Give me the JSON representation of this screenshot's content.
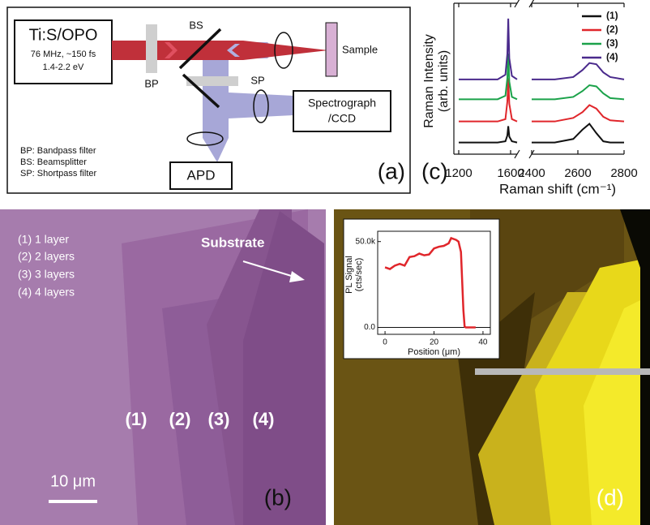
{
  "panel_a": {
    "label": "(a)",
    "laser": {
      "title": "Ti:S/OPO",
      "lines": [
        "76 MHz, ~150 fs",
        "1.4-2.2 eV"
      ]
    },
    "components": {
      "bp": "BP",
      "bs": "BS",
      "sp": "SP",
      "sample": "Sample",
      "spectrograph": [
        "Spectrograph",
        "/CCD"
      ],
      "apd": "APD"
    },
    "legend": [
      "BP: Bandpass filter",
      "BS: Beamsplitter",
      "SP: Shortpass filter"
    ]
  },
  "panel_b": {
    "label": "(b)",
    "legend": [
      "(1) 1 layer",
      "(2) 2 layers",
      "(3) 3 layers",
      "(4) 4 layers"
    ],
    "substrate": "Substrate",
    "regions": [
      "(1)",
      "(2)",
      "(3)",
      "(4)"
    ],
    "scale_bar": "10 μm"
  },
  "panel_c": {
    "label": "(c)",
    "chart": {
      "type": "line",
      "y_label": [
        "Raman Intensity",
        "(arb. units)"
      ],
      "x_label": "Raman shift (cm⁻¹)",
      "x": [
        1200,
        1400,
        1500,
        1560,
        1575,
        1582,
        1590,
        1610,
        1650,
        2400,
        2500,
        2580,
        2620,
        2650,
        2680,
        2710,
        2740,
        2800
      ],
      "xlim": [
        1200,
        2800
      ],
      "x_break": [
        1650,
        2400
      ],
      "xticks": [
        1200,
        1600,
        2400,
        2600,
        2800
      ],
      "ylim": [
        0,
        12.5
      ],
      "legend": "top-right",
      "series": [
        {
          "name": "(1)",
          "color": "#111111",
          "values": [
            1.0,
            1.0,
            1.0,
            1.1,
            1.6,
            2.4,
            1.5,
            1.1,
            1.0,
            1.0,
            1.0,
            1.3,
            2.1,
            2.6,
            1.8,
            1.1,
            1.0,
            1.0
          ]
        },
        {
          "name": "(2)",
          "color": "#e0262b",
          "values": [
            2.8,
            2.8,
            2.8,
            3.0,
            4.5,
            6.5,
            4.3,
            3.0,
            2.8,
            2.8,
            2.8,
            3.1,
            3.6,
            4.2,
            3.9,
            3.2,
            2.9,
            2.8
          ]
        },
        {
          "name": "(3)",
          "color": "#1ba24a",
          "values": [
            4.7,
            4.7,
            4.7,
            5.0,
            6.5,
            8.6,
            6.2,
            4.9,
            4.7,
            4.7,
            4.7,
            4.9,
            5.4,
            5.9,
            5.8,
            5.2,
            4.8,
            4.7
          ]
        },
        {
          "name": "(4)",
          "color": "#4a2a8c",
          "values": [
            6.4,
            6.4,
            6.4,
            6.8,
            8.6,
            11.6,
            8.2,
            6.7,
            6.4,
            6.4,
            6.4,
            6.6,
            7.2,
            7.8,
            7.7,
            7.0,
            6.6,
            6.4
          ]
        }
      ]
    }
  },
  "panel_d": {
    "label": "(d)",
    "chart": {
      "type": "line",
      "y_label": [
        "PL Signal",
        "(cts/sec)"
      ],
      "x_label": "Position (μm)",
      "x": [
        0,
        2,
        4,
        6,
        8,
        10,
        12,
        14,
        16,
        18,
        20,
        22,
        24,
        26,
        27,
        29,
        30,
        31,
        32,
        32.5,
        33,
        35,
        37
      ],
      "values": [
        35000,
        34000,
        36000,
        37000,
        36000,
        41000,
        41500,
        43000,
        42000,
        42500,
        46000,
        47000,
        47500,
        49000,
        52000,
        51000,
        50000,
        44000,
        10000,
        500,
        0,
        0,
        0
      ],
      "color": "#e0262b",
      "xlim": [
        -3,
        43
      ],
      "xticks": [
        0,
        20,
        40
      ],
      "ylim": [
        -4000,
        56000
      ],
      "yticks": [
        {
          "value": 0,
          "label": "0.0"
        },
        {
          "value": 50000,
          "label": "50.0k"
        }
      ],
      "reference_line": 0
    }
  }
}
